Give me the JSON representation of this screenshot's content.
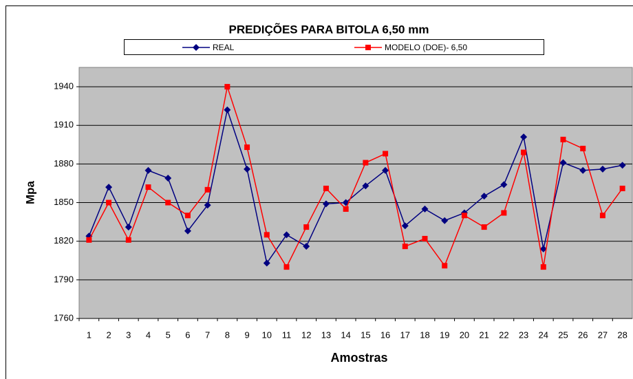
{
  "chart_data": {
    "type": "line",
    "title": "PREDIÇÕES PARA BITOLA  6,50  mm",
    "xlabel": "Amostras",
    "ylabel": "Mpa",
    "categories": [
      "1",
      "2",
      "3",
      "4",
      "5",
      "6",
      "7",
      "8",
      "9",
      "10",
      "11",
      "12",
      "13",
      "14",
      "15",
      "16",
      "17",
      "18",
      "19",
      "20",
      "21",
      "22",
      "23",
      "24",
      "25",
      "26",
      "27",
      "28"
    ],
    "series": [
      {
        "name": "REAL",
        "color": "#000080",
        "marker": "diamond",
        "values": [
          1824,
          1862,
          1831,
          1875,
          1869,
          1828,
          1848,
          1922,
          1876,
          1803,
          1825,
          1816,
          1849,
          1850,
          1863,
          1875,
          1832,
          1845,
          1836,
          1842,
          1855,
          1864,
          1901,
          1814,
          1881,
          1875,
          1876,
          1879
        ]
      },
      {
        "name": "MODELO (DOE)- 6,50",
        "color": "#ff0000",
        "marker": "square",
        "values": [
          1821,
          1850,
          1821,
          1862,
          1850,
          1840,
          1860,
          1940,
          1893,
          1825,
          1800,
          1831,
          1861,
          1845,
          1881,
          1888,
          1816,
          1822,
          1801,
          1840,
          1831,
          1842,
          1889,
          1800,
          1899,
          1892,
          1840,
          1861
        ]
      }
    ],
    "ylim": [
      1760,
      1955
    ],
    "yticks": [
      1760,
      1790,
      1820,
      1850,
      1880,
      1910,
      1940
    ],
    "grid": true,
    "legend": "top",
    "plot_background": "#c0c0c0"
  }
}
